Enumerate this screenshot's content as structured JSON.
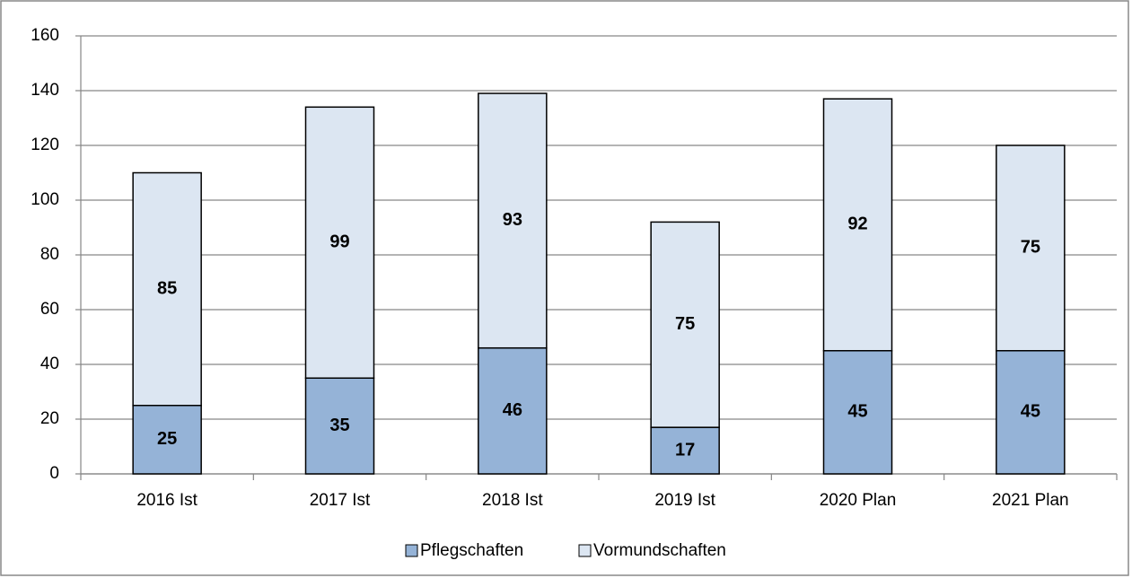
{
  "chart_data": {
    "type": "bar",
    "stacked": true,
    "categories": [
      "2016 Ist",
      "2017 Ist",
      "2018 Ist",
      "2019 Ist",
      "2020 Plan",
      "2021 Plan"
    ],
    "series": [
      {
        "name": "Pflegschaften",
        "color": "#95b3d7",
        "values": [
          25,
          35,
          46,
          17,
          45,
          45
        ]
      },
      {
        "name": "Vormundschaften",
        "color": "#dce6f2",
        "values": [
          85,
          99,
          93,
          75,
          92,
          75
        ]
      }
    ],
    "ylim": [
      0,
      160
    ],
    "yticks": [
      0,
      20,
      40,
      60,
      80,
      100,
      120,
      140,
      160
    ],
    "grid": true,
    "legend": "bottom"
  }
}
